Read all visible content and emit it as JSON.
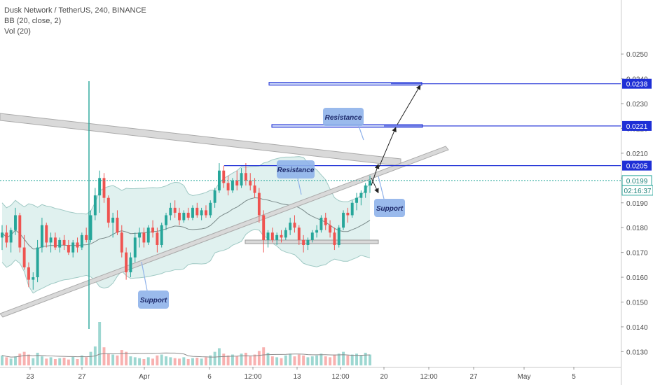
{
  "legend": {
    "symbol_line": "Dusk Network / TetherUS, 240, BINANCE",
    "bb_line": "BB (20, close, 2)",
    "vol_line": "Vol (20)"
  },
  "colors": {
    "up": "#26a69a",
    "down": "#ef5350",
    "bb_fill": "#d6ecea",
    "bb_line": "#9fc9c4",
    "basis": "#7a8a8a",
    "trendline": "#b7b7b7",
    "level_line": "#1e2fd6",
    "label_box": "#8fb2ea",
    "label_text": "#1d2a6b",
    "price_tag": "#1e2fd6",
    "last_tag": "#26a69a"
  },
  "chart_data": {
    "type": "candlestick",
    "title": "Dusk Network / TetherUS, 240, BINANCE",
    "indicators": [
      "BB (20, close, 2)",
      "Vol (20)"
    ],
    "y_ticks": [
      "0.0250",
      "0.0240",
      "0.0230",
      "0.0220",
      "0.0210",
      "0.0200",
      "0.0190",
      "0.0180",
      "0.0170",
      "0.0160",
      "0.0150",
      "0.0140",
      "0.0130"
    ],
    "ylim": [
      0.0127,
      0.0265
    ],
    "x_ticks": [
      "23",
      "27",
      "Apr",
      "6",
      "12:00",
      "13",
      "12:00",
      "20",
      "12:00",
      "27",
      "May",
      "5"
    ],
    "price_tags": [
      {
        "value": 0.0238,
        "label": "0.0238"
      },
      {
        "value": 0.0221,
        "label": "0.0221"
      },
      {
        "value": 0.0205,
        "label": "0.0205"
      },
      {
        "value": 0.0199,
        "label": "0.0199"
      }
    ],
    "countdown": "02:16:37",
    "annotations": [
      {
        "text": "Resistance",
        "kind": "resistance"
      },
      {
        "text": "Resistance",
        "kind": "resistance"
      },
      {
        "text": "Support",
        "kind": "support"
      },
      {
        "text": "Support",
        "kind": "support"
      }
    ],
    "candles": [
      [
        0.0176,
        0.0181,
        0.0171,
        0.0178
      ],
      [
        0.0178,
        0.0181,
        0.0172,
        0.0174
      ],
      [
        0.0174,
        0.018,
        0.017,
        0.0179
      ],
      [
        0.0179,
        0.0188,
        0.0177,
        0.0185
      ],
      [
        0.0185,
        0.0186,
        0.017,
        0.0172
      ],
      [
        0.0172,
        0.0177,
        0.0163,
        0.0164
      ],
      [
        0.0164,
        0.0166,
        0.0156,
        0.0159
      ],
      [
        0.0159,
        0.0162,
        0.0155,
        0.016
      ],
      [
        0.016,
        0.0175,
        0.0158,
        0.0172
      ],
      [
        0.0172,
        0.0184,
        0.017,
        0.0181
      ],
      [
        0.0181,
        0.0182,
        0.0172,
        0.0174
      ],
      [
        0.0174,
        0.0178,
        0.017,
        0.0176
      ],
      [
        0.0176,
        0.0178,
        0.0171,
        0.0172
      ],
      [
        0.0172,
        0.0176,
        0.017,
        0.0175
      ],
      [
        0.0175,
        0.0177,
        0.0171,
        0.0173
      ],
      [
        0.0173,
        0.0175,
        0.0169,
        0.017
      ],
      [
        0.017,
        0.0175,
        0.0168,
        0.0174
      ],
      [
        0.0174,
        0.0176,
        0.017,
        0.0172
      ],
      [
        0.0172,
        0.0178,
        0.0171,
        0.0177
      ],
      [
        0.0177,
        0.018,
        0.0174,
        0.0175
      ],
      [
        0.0175,
        0.0187,
        0.0174,
        0.0185
      ],
      [
        0.0185,
        0.0196,
        0.0183,
        0.0193
      ],
      [
        0.0193,
        0.0203,
        0.0186,
        0.02
      ],
      [
        0.02,
        0.0202,
        0.019,
        0.0192
      ],
      [
        0.0192,
        0.0193,
        0.018,
        0.0182
      ],
      [
        0.0182,
        0.0186,
        0.0176,
        0.0184
      ],
      [
        0.0184,
        0.0187,
        0.0177,
        0.0178
      ],
      [
        0.0178,
        0.0181,
        0.0168,
        0.017
      ],
      [
        0.017,
        0.0172,
        0.0159,
        0.0162
      ],
      [
        0.0162,
        0.017,
        0.016,
        0.0168
      ],
      [
        0.0168,
        0.0178,
        0.0166,
        0.0176
      ],
      [
        0.0176,
        0.018,
        0.0172,
        0.0178
      ],
      [
        0.0178,
        0.018,
        0.0172,
        0.0174
      ],
      [
        0.0174,
        0.0181,
        0.0173,
        0.018
      ],
      [
        0.018,
        0.0183,
        0.0176,
        0.0178
      ],
      [
        0.0178,
        0.018,
        0.017,
        0.0173
      ],
      [
        0.0173,
        0.0182,
        0.0172,
        0.0181
      ],
      [
        0.0181,
        0.0186,
        0.0179,
        0.0185
      ],
      [
        0.0185,
        0.019,
        0.0183,
        0.0188
      ],
      [
        0.0188,
        0.0191,
        0.0184,
        0.0186
      ],
      [
        0.0186,
        0.0188,
        0.0181,
        0.0183
      ],
      [
        0.0183,
        0.0187,
        0.0182,
        0.0186
      ],
      [
        0.0186,
        0.0188,
        0.0183,
        0.0184
      ],
      [
        0.0184,
        0.0189,
        0.0183,
        0.0188
      ],
      [
        0.0188,
        0.019,
        0.0184,
        0.0185
      ],
      [
        0.0185,
        0.0188,
        0.0183,
        0.0187
      ],
      [
        0.0187,
        0.0189,
        0.0184,
        0.0185
      ],
      [
        0.0185,
        0.0191,
        0.0184,
        0.019
      ],
      [
        0.019,
        0.0196,
        0.0188,
        0.0195
      ],
      [
        0.0195,
        0.0206,
        0.0194,
        0.0203
      ],
      [
        0.0203,
        0.0205,
        0.0196,
        0.0198
      ],
      [
        0.0198,
        0.0201,
        0.0193,
        0.0195
      ],
      [
        0.0195,
        0.02,
        0.0194,
        0.0199
      ],
      [
        0.0199,
        0.0203,
        0.0195,
        0.0197
      ],
      [
        0.0197,
        0.0204,
        0.0196,
        0.0202
      ],
      [
        0.0202,
        0.0206,
        0.0197,
        0.0199
      ],
      [
        0.0199,
        0.0202,
        0.0195,
        0.0197
      ],
      [
        0.0197,
        0.02,
        0.0192,
        0.0194
      ],
      [
        0.0194,
        0.0196,
        0.0182,
        0.0185
      ],
      [
        0.0185,
        0.0187,
        0.017,
        0.0175
      ],
      [
        0.0175,
        0.0179,
        0.0172,
        0.0178
      ],
      [
        0.0178,
        0.018,
        0.0174,
        0.0175
      ],
      [
        0.0175,
        0.0178,
        0.0173,
        0.0177
      ],
      [
        0.0177,
        0.0179,
        0.0174,
        0.0176
      ],
      [
        0.0176,
        0.018,
        0.0175,
        0.0179
      ],
      [
        0.0179,
        0.0184,
        0.0177,
        0.0182
      ],
      [
        0.0182,
        0.0185,
        0.0178,
        0.018
      ],
      [
        0.018,
        0.0181,
        0.0173,
        0.0175
      ],
      [
        0.0175,
        0.0177,
        0.017,
        0.0173
      ],
      [
        0.0173,
        0.0176,
        0.0171,
        0.0175
      ],
      [
        0.0175,
        0.0179,
        0.0174,
        0.0178
      ],
      [
        0.0178,
        0.0181,
        0.0176,
        0.0179
      ],
      [
        0.0179,
        0.0185,
        0.0178,
        0.0184
      ],
      [
        0.0184,
        0.0186,
        0.0179,
        0.0181
      ],
      [
        0.0181,
        0.0183,
        0.0176,
        0.0178
      ],
      [
        0.0178,
        0.018,
        0.0171,
        0.0173
      ],
      [
        0.0173,
        0.0181,
        0.0172,
        0.018
      ],
      [
        0.018,
        0.0187,
        0.0179,
        0.0186
      ],
      [
        0.0186,
        0.0188,
        0.0182,
        0.0185
      ],
      [
        0.0185,
        0.0191,
        0.0184,
        0.019
      ],
      [
        0.019,
        0.0194,
        0.0187,
        0.0192
      ],
      [
        0.0192,
        0.0195,
        0.0189,
        0.0194
      ],
      [
        0.0194,
        0.0198,
        0.0192,
        0.0197
      ],
      [
        0.0197,
        0.0201,
        0.0194,
        0.0199
      ]
    ],
    "volumes": [
      22,
      18,
      15,
      20,
      26,
      30,
      24,
      16,
      28,
      20,
      15,
      18,
      14,
      16,
      17,
      13,
      19,
      14,
      22,
      18,
      30,
      42,
      96,
      40,
      26,
      24,
      22,
      34,
      30,
      20,
      18,
      16,
      14,
      18,
      15,
      22,
      24,
      20,
      18,
      16,
      15,
      18,
      14,
      16,
      17,
      15,
      18,
      22,
      30,
      38,
      26,
      22,
      24,
      20,
      26,
      28,
      20,
      24,
      32,
      40,
      28,
      20,
      18,
      16,
      22,
      26,
      20,
      24,
      22,
      18,
      20,
      22,
      26,
      20,
      18,
      24,
      26,
      30,
      22,
      24,
      26,
      22,
      28,
      24
    ]
  }
}
